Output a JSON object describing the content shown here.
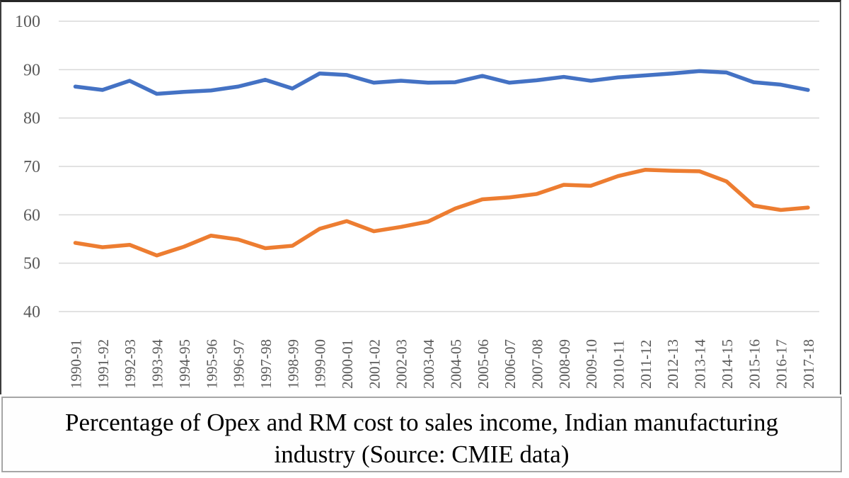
{
  "caption": {
    "lines": [
      "Percentage of Opex and RM cost to sales income, Indian manufacturing",
      "industry (Source: CMIE data)"
    ]
  },
  "chart_data": {
    "type": "line",
    "title": "Percentage of Opex and RM cost to sales income, Indian manufacturing industry (Source: CMIE data)",
    "categories": [
      "1990-91",
      "1991-92",
      "1992-93",
      "1993-94",
      "1994-95",
      "1995-96",
      "1996-97",
      "1997-98",
      "1998-99",
      "1999-00",
      "2000-01",
      "2001-02",
      "2002-03",
      "2003-04",
      "2004-05",
      "2005-06",
      "2006-07",
      "2007-08",
      "2008-09",
      "2009-10",
      "2010-11",
      "2011-12",
      "2012-13",
      "2013-14",
      "2014-15",
      "2015-16",
      "2016-17",
      "2017-18"
    ],
    "series": [
      {
        "name": "Opex",
        "color": "#4472C4",
        "values": [
          86.5,
          85.8,
          87.7,
          85.0,
          85.4,
          85.7,
          86.5,
          87.9,
          86.1,
          89.2,
          88.9,
          87.3,
          87.7,
          87.3,
          87.4,
          88.7,
          87.3,
          87.8,
          88.5,
          87.7,
          88.4,
          88.8,
          89.2,
          89.7,
          89.4,
          87.4,
          86.9,
          85.8
        ]
      },
      {
        "name": "RM cost",
        "color": "#ED7D31",
        "values": [
          54.2,
          53.3,
          53.8,
          51.6,
          53.4,
          55.7,
          54.9,
          53.1,
          53.6,
          57.1,
          58.7,
          56.6,
          57.5,
          58.6,
          61.3,
          63.2,
          63.6,
          64.3,
          66.2,
          66.0,
          68.0,
          69.3,
          69.1,
          69.0,
          66.9,
          61.9,
          61.0,
          61.5
        ]
      }
    ],
    "ylim": [
      40,
      100
    ],
    "y_ticks": [
      100,
      90,
      80,
      70,
      60,
      50,
      40
    ],
    "grid": true,
    "legend": "none",
    "axis_label_color": "#595959",
    "grid_color": "#D9D9D9"
  }
}
